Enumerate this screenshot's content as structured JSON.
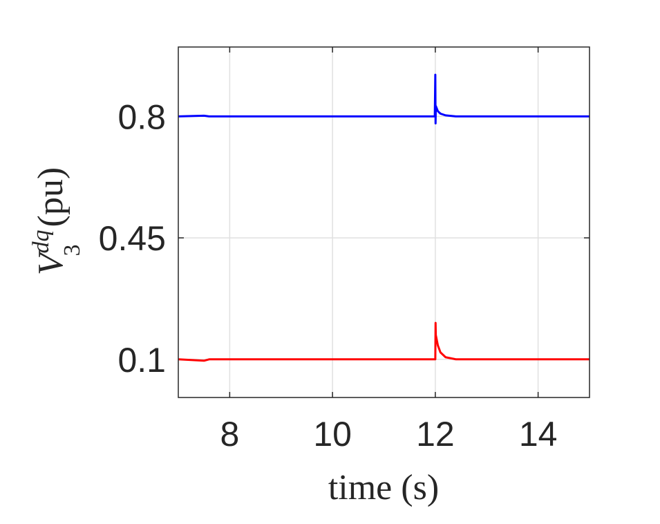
{
  "chart_data": {
    "type": "line",
    "xlabel": "time (s)",
    "ylabel": {
      "symbol": "V",
      "subscript": "3",
      "superscript": "dq",
      "unit": "(pu)"
    },
    "x": [
      7,
      7.5,
      7.6,
      11.99,
      12.0,
      12.005,
      12.01,
      12.05,
      12.1,
      12.2,
      12.4,
      15
    ],
    "series": [
      {
        "color": "#0000ff",
        "values": [
          0.8,
          0.802,
          0.8,
          0.8,
          0.92,
          0.78,
          0.83,
          0.815,
          0.808,
          0.803,
          0.8,
          0.8
        ]
      },
      {
        "color": "#ff0000",
        "values": [
          0.1,
          0.096,
          0.1,
          0.1,
          0.1,
          0.205,
          0.17,
          0.14,
          0.12,
          0.106,
          0.1,
          0.1
        ]
      }
    ],
    "xlim": [
      7,
      15
    ],
    "ylim": [
      -0.01,
      1
    ],
    "xticks": [
      8,
      10,
      12,
      14
    ],
    "yticks": [
      0.1,
      0.45,
      0.8
    ],
    "grid": true
  }
}
